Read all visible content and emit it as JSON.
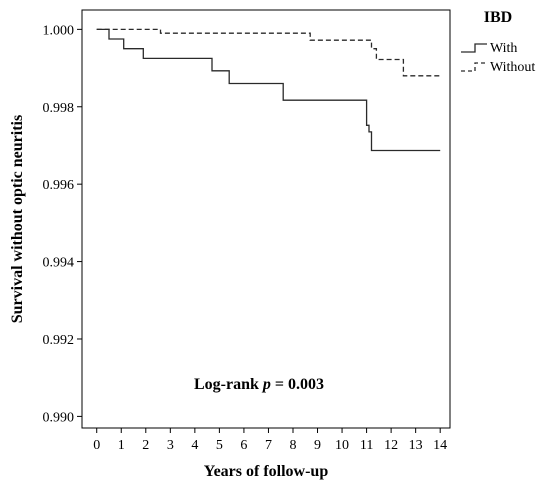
{
  "chart_data": {
    "type": "line",
    "subtype": "kaplan-meier step",
    "xlabel": "Years of follow-up",
    "ylabel": "Survival without optic neuritis",
    "xlim": [
      -0.6,
      14.4
    ],
    "ylim": [
      0.9897,
      1.0005
    ],
    "xticks": [
      0,
      1,
      2,
      3,
      4,
      5,
      6,
      7,
      8,
      9,
      10,
      11,
      12,
      13,
      14
    ],
    "yticks": [
      0.99,
      0.992,
      0.994,
      0.996,
      0.998,
      1.0
    ],
    "ytick_labels": [
      "0.990",
      "0.992",
      "0.994",
      "0.996",
      "0.998",
      "1.000"
    ],
    "grid": false,
    "legend": {
      "title": "IBD",
      "position": "outside-top-right"
    },
    "annotation": {
      "prefix": "Log-rank ",
      "italic": "p",
      "suffix": " = 0.003"
    },
    "series": [
      {
        "name": "With",
        "style": "solid",
        "color": "#2a2a2a",
        "x": [
          0,
          0.5,
          1.1,
          1.9,
          4.7,
          5.4,
          7.6,
          11.0,
          11.1,
          11.2,
          14.0
        ],
        "y": [
          1.0,
          0.99975,
          0.9995,
          0.99925,
          0.99893,
          0.9986,
          0.99817,
          0.99752,
          0.99735,
          0.99687,
          0.99687
        ]
      },
      {
        "name": "Without",
        "style": "dashed",
        "color": "#2a2a2a",
        "x": [
          0,
          2.6,
          8.7,
          11.2,
          11.4,
          12.5,
          14.0
        ],
        "y": [
          1.0,
          0.9999,
          0.99972,
          0.9995,
          0.99922,
          0.9988,
          0.9988
        ]
      }
    ]
  }
}
